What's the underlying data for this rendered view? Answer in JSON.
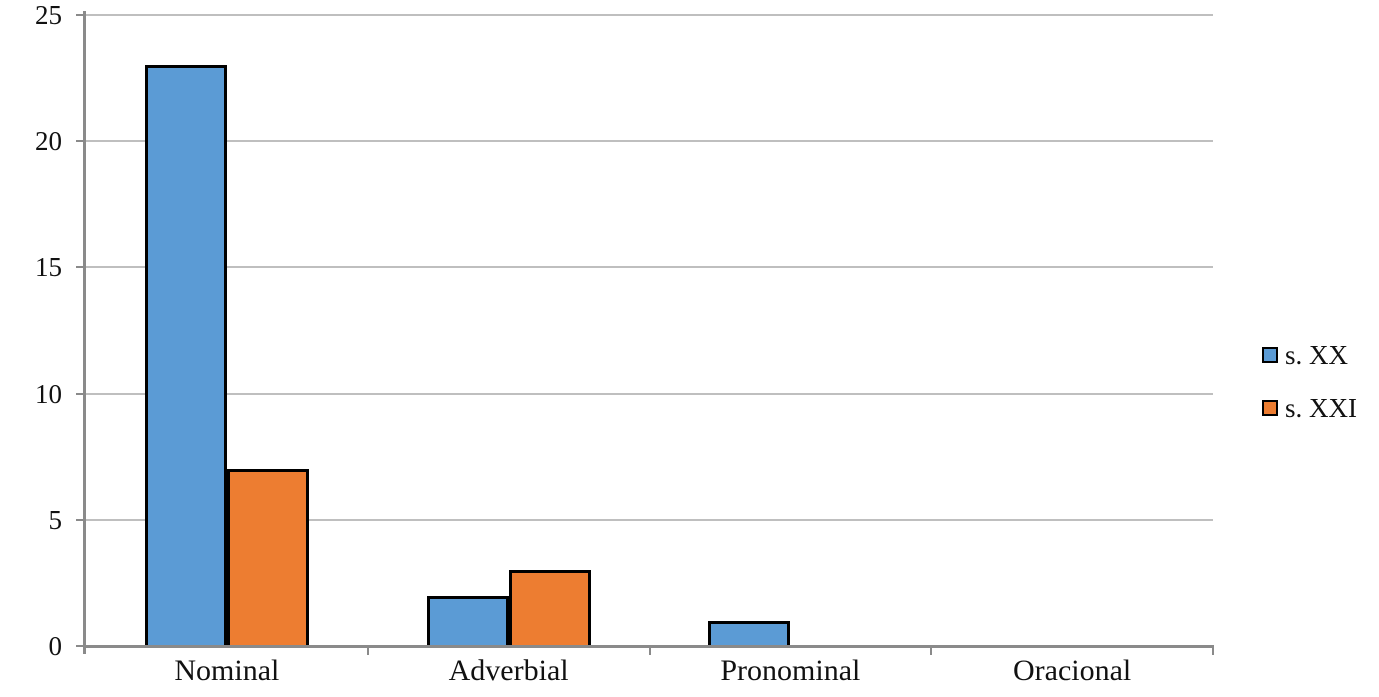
{
  "chart_data": {
    "type": "bar",
    "title": "",
    "xlabel": "",
    "ylabel": "",
    "categories": [
      "Nominal",
      "Adverbial",
      "Pronominal",
      "Oracional"
    ],
    "series": [
      {
        "name": "s. XX",
        "color": "#5B9BD5",
        "values": [
          23,
          2,
          1,
          0
        ]
      },
      {
        "name": "s. XXI",
        "color": "#ED7D31",
        "values": [
          7,
          3,
          0,
          0
        ]
      }
    ],
    "ylim": [
      0,
      25
    ],
    "yticks": [
      0,
      5,
      10,
      15,
      20,
      25
    ],
    "grid": true,
    "legend_position": "right-middle",
    "bar_border_color": "#000000",
    "axis_color": "#8A8A8A",
    "gridline_color": "#BFBFBF",
    "background": "#FFFFFF"
  }
}
